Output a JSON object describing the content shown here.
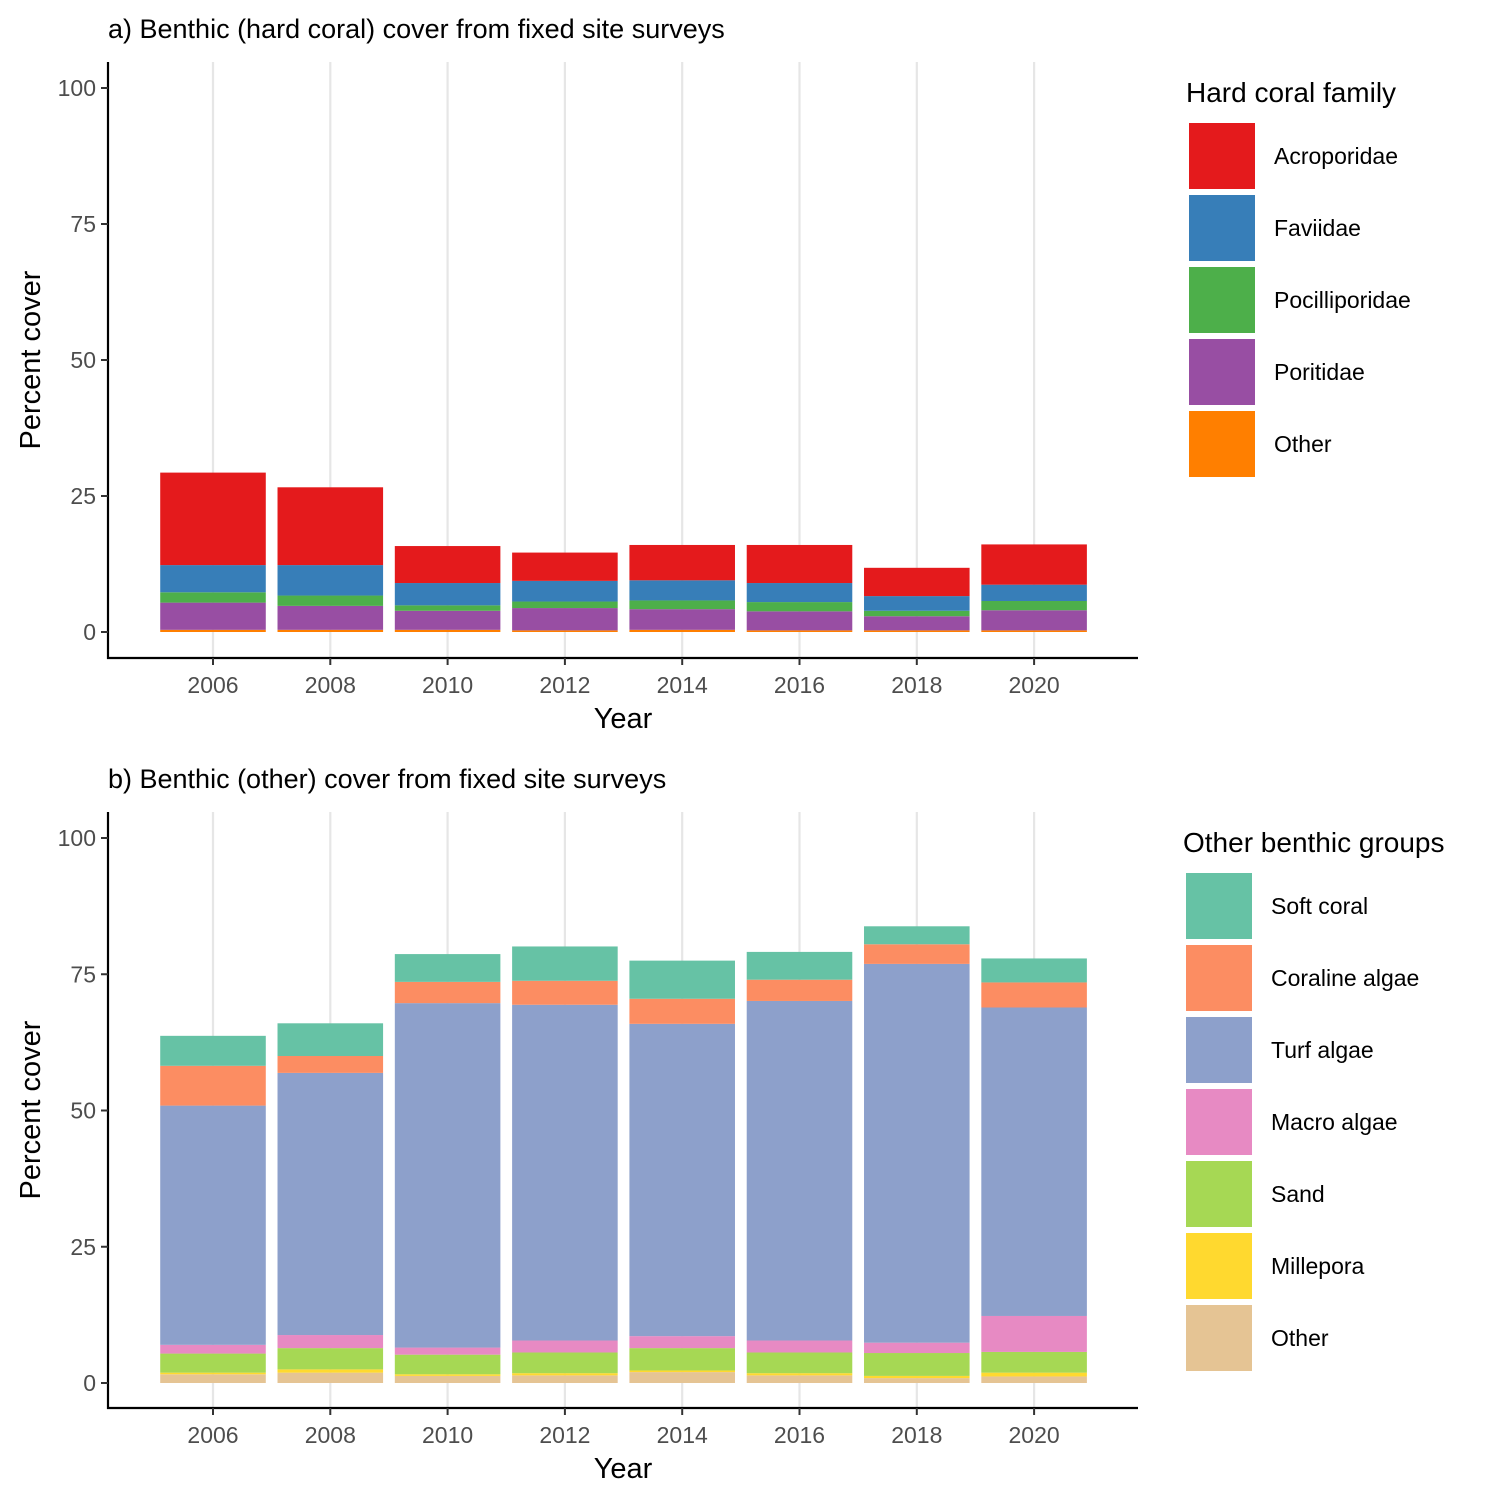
{
  "chart_data": [
    {
      "type": "bar",
      "stacked": true,
      "title": "a) Benthic (hard coral) cover from fixed site surveys",
      "xlabel": "Year",
      "ylabel": "Percent cover",
      "ylim": [
        0,
        100
      ],
      "yticks": [
        0,
        25,
        50,
        75,
        100
      ],
      "xticks": [
        2006,
        2008,
        2010,
        2012,
        2014,
        2016,
        2018,
        2020
      ],
      "xlim": [
        2004.3,
        2021.9
      ],
      "bar_width": 1.8,
      "grid": "vertical major",
      "legend": {
        "title": "Hard coral family",
        "position": "right"
      },
      "categories": [
        2006,
        2008,
        2010,
        2012,
        2014,
        2016,
        2018,
        2020
      ],
      "series": [
        {
          "name": "Other",
          "color": "#FF7F00",
          "values": [
            0.4,
            0.4,
            0.4,
            0.3,
            0.4,
            0.3,
            0.3,
            0.3
          ]
        },
        {
          "name": "Poritidae",
          "color": "#984EA3",
          "values": [
            5.0,
            4.4,
            3.5,
            4.1,
            3.8,
            3.5,
            2.6,
            3.7
          ]
        },
        {
          "name": "Pocilliporidae",
          "color": "#4DAF4A",
          "values": [
            1.9,
            1.9,
            1.0,
            1.2,
            1.6,
            1.7,
            1.0,
            1.7
          ]
        },
        {
          "name": "Faviidae",
          "color": "#377EB8",
          "values": [
            5.0,
            5.6,
            4.1,
            3.8,
            3.7,
            3.5,
            2.7,
            3.0
          ]
        },
        {
          "name": "Acroporidae",
          "color": "#E41A1C",
          "values": [
            17.0,
            14.3,
            6.8,
            5.2,
            6.5,
            7.0,
            5.2,
            7.4
          ]
        }
      ]
    },
    {
      "type": "bar",
      "stacked": true,
      "title": "b) Benthic (other) cover from fixed site surveys",
      "xlabel": "Year",
      "ylabel": "Percent cover",
      "ylim": [
        0,
        100
      ],
      "yticks": [
        0,
        25,
        50,
        75,
        100
      ],
      "xticks": [
        2006,
        2008,
        2010,
        2012,
        2014,
        2016,
        2018,
        2020
      ],
      "xlim": [
        2004.3,
        2021.9
      ],
      "bar_width": 1.8,
      "grid": "vertical major",
      "legend": {
        "title": "Other benthic groups",
        "position": "right"
      },
      "categories": [
        2006,
        2008,
        2010,
        2012,
        2014,
        2016,
        2018,
        2020
      ],
      "series": [
        {
          "name": "Other",
          "color": "#E5C494",
          "values": [
            1.6,
            1.9,
            1.3,
            1.4,
            2.0,
            1.4,
            0.9,
            1.2
          ]
        },
        {
          "name": "Millepora",
          "color": "#FFD92F",
          "values": [
            0.3,
            0.6,
            0.3,
            0.4,
            0.3,
            0.4,
            0.4,
            0.7
          ]
        },
        {
          "name": "Sand",
          "color": "#A6D854",
          "values": [
            3.5,
            3.9,
            3.6,
            3.8,
            4.1,
            3.8,
            4.2,
            3.8
          ]
        },
        {
          "name": "Macro algae",
          "color": "#E78AC3",
          "values": [
            1.6,
            2.4,
            1.3,
            2.2,
            2.2,
            2.2,
            1.9,
            6.6
          ]
        },
        {
          "name": "Turf algae",
          "color": "#8DA0CB",
          "values": [
            43.9,
            48.1,
            63.2,
            61.6,
            57.3,
            62.3,
            69.5,
            56.6
          ]
        },
        {
          "name": "Coraline algae",
          "color": "#FC8D62",
          "values": [
            7.3,
            3.1,
            3.9,
            4.4,
            4.6,
            3.9,
            3.6,
            4.6
          ]
        },
        {
          "name": "Soft coral",
          "color": "#66C2A5",
          "values": [
            5.5,
            6.0,
            5.1,
            6.3,
            7.0,
            5.1,
            3.3,
            4.4
          ]
        }
      ]
    }
  ]
}
